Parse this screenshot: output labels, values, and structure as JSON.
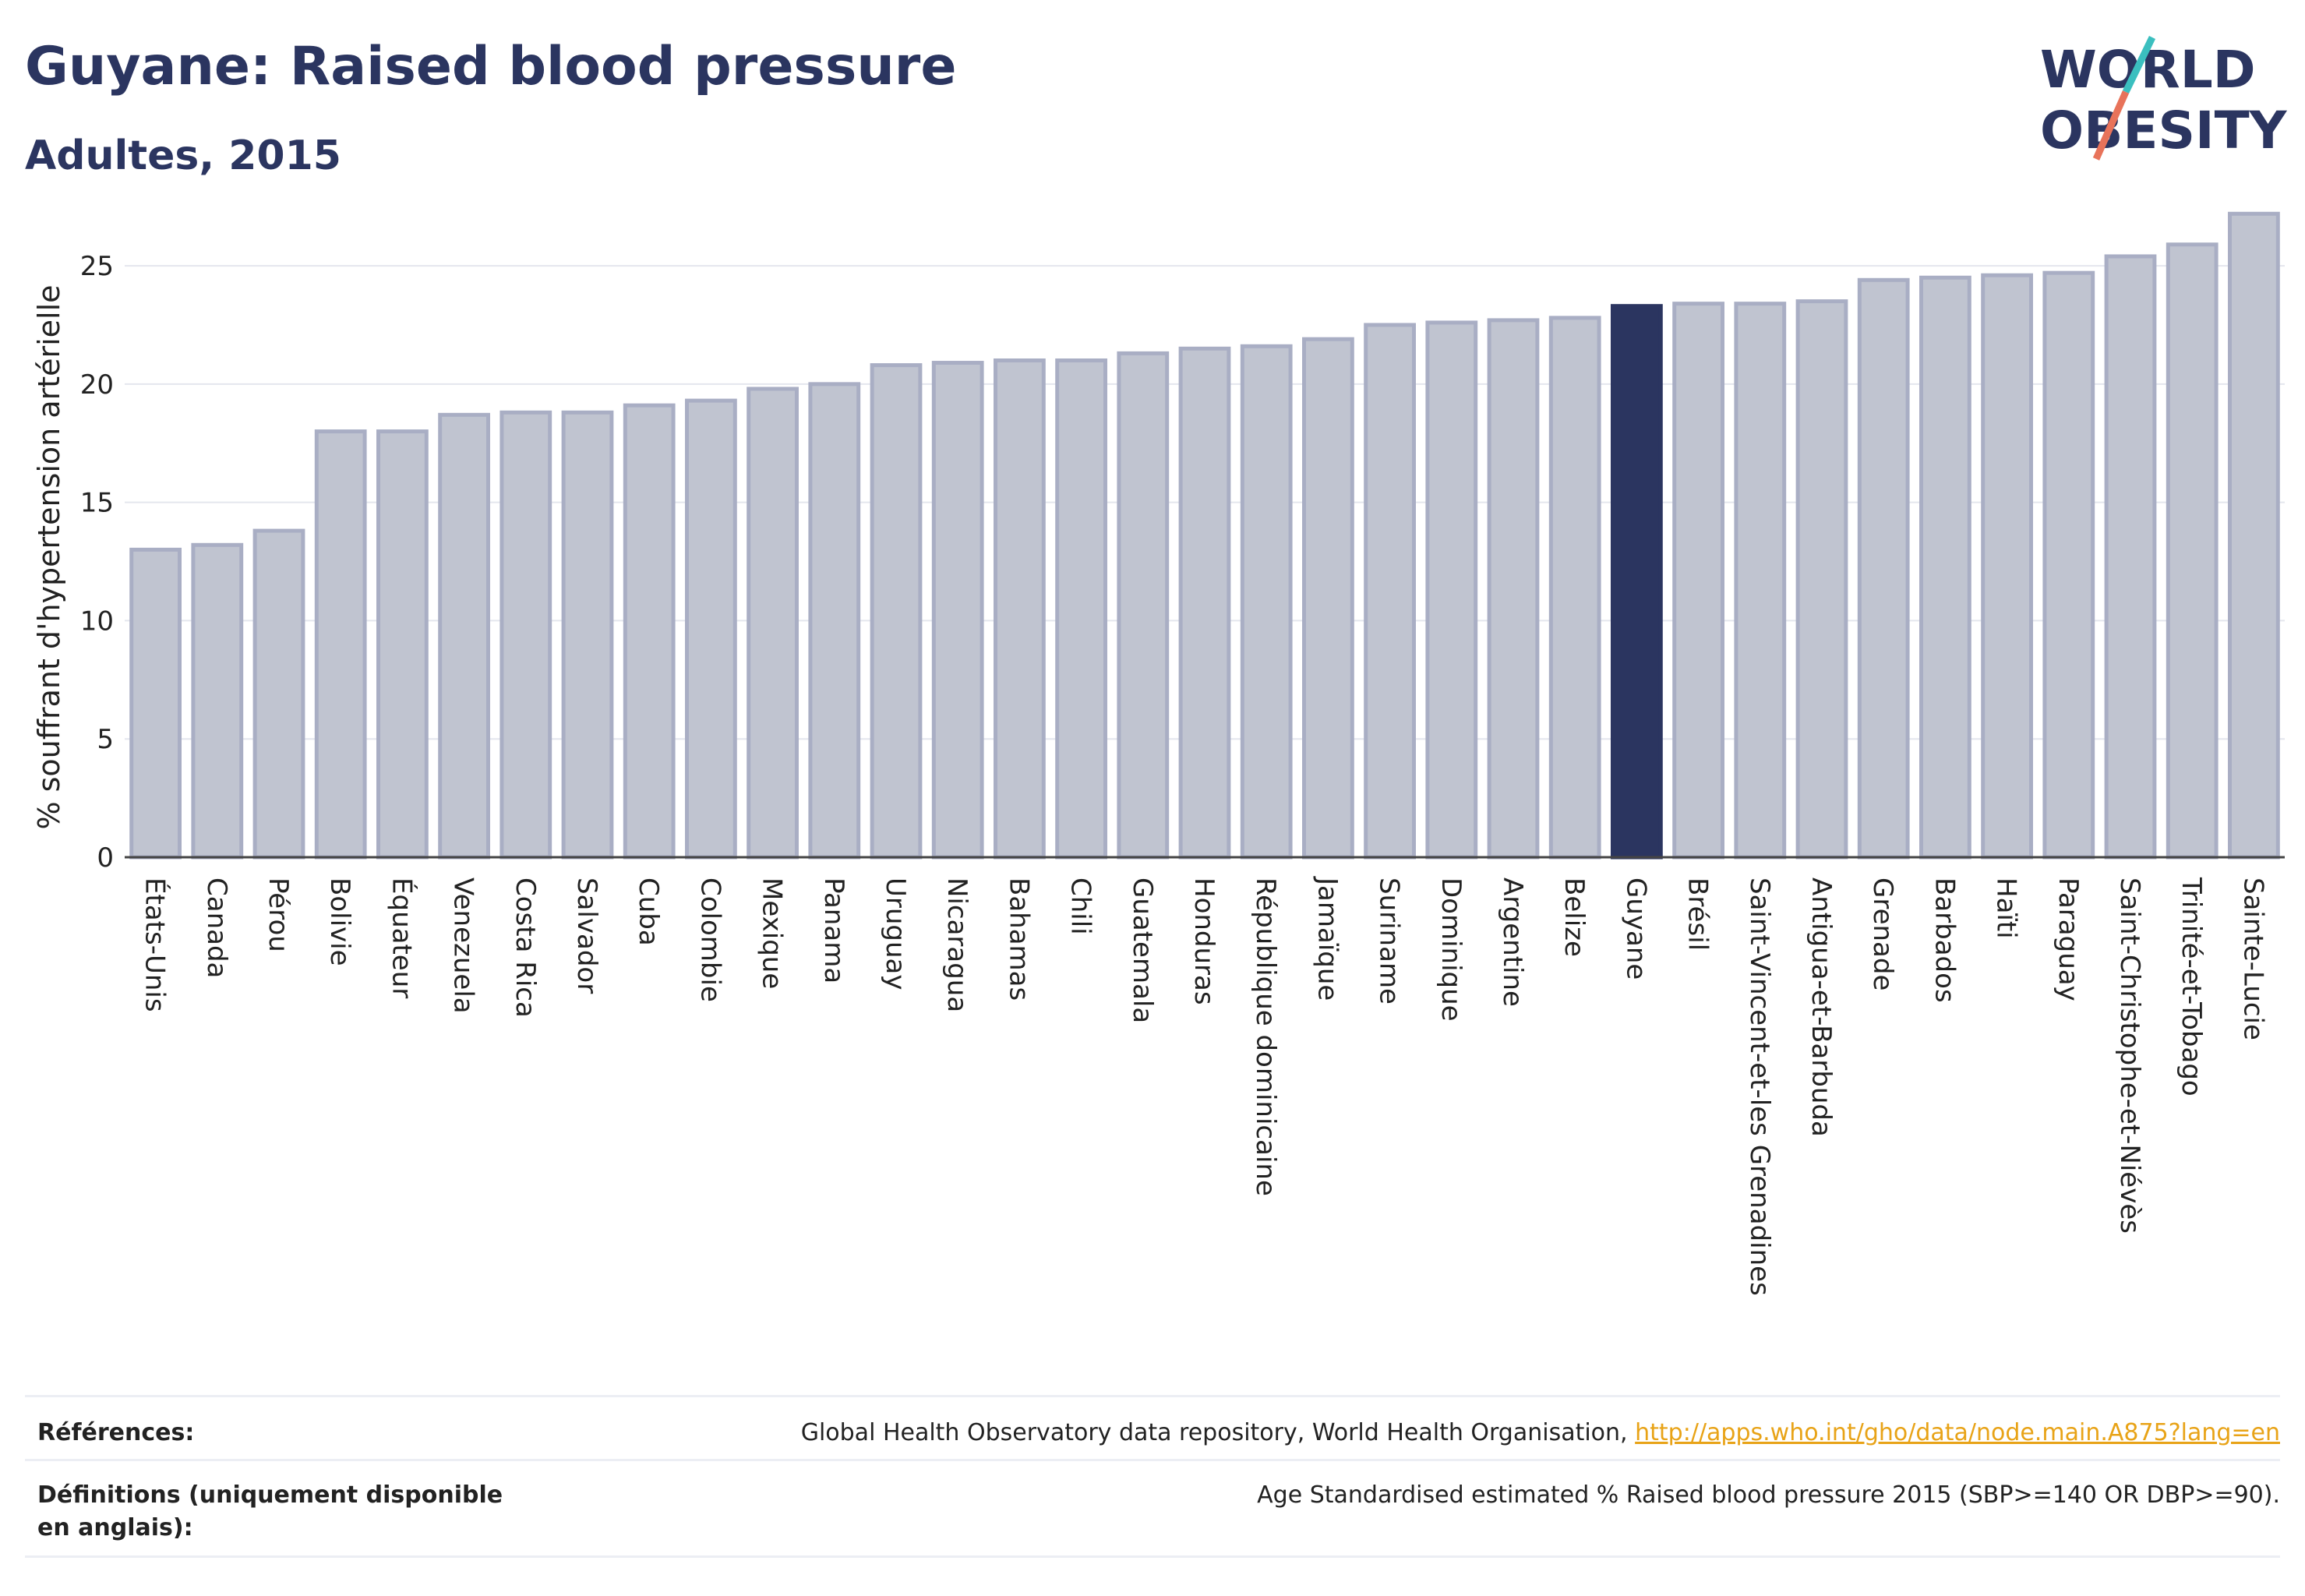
{
  "header": {
    "title": "Guyane: Raised blood pressure",
    "subtitle": "Adultes, 2015"
  },
  "logo": {
    "line1": "WORLD",
    "line2": "OBESITY",
    "text_color": "#2b3560",
    "slash_colors": [
      "#3bbfbf",
      "#e8735a"
    ]
  },
  "chart_data": {
    "type": "bar",
    "ylabel": "% souffrant d'hypertension artérielle",
    "xlabel": "",
    "ylim": [
      0,
      28
    ],
    "yticks": [
      0,
      5,
      10,
      15,
      20,
      25
    ],
    "grid": true,
    "highlight": "Guyane",
    "colors": {
      "bar": "#c0c4d0",
      "bar_edge": "#a9aec4",
      "highlight": "#2b3560",
      "grid": "#e4e6ee",
      "axis": "#444444"
    },
    "categories": [
      "États-Unis",
      "Canada",
      "Pérou",
      "Bolivie",
      "Équateur",
      "Venezuela",
      "Costa Rica",
      "Salvador",
      "Cuba",
      "Colombie",
      "Mexique",
      "Panama",
      "Uruguay",
      "Nicaragua",
      "Bahamas",
      "Chili",
      "Guatemala",
      "Honduras",
      "République dominicaine",
      "Jamaïque",
      "Suriname",
      "Dominique",
      "Argentine",
      "Belize",
      "Guyane",
      "Brésil",
      "Saint-Vincent-et-les Grenadines",
      "Antigua-et-Barbuda",
      "Grenade",
      "Barbados",
      "Haïti",
      "Paraguay",
      "Saint-Christophe-et-Niévès",
      "Trinité-et-Tobago",
      "Sainte-Lucie"
    ],
    "values": [
      13.0,
      13.2,
      13.8,
      18.0,
      18.0,
      18.7,
      18.8,
      18.8,
      19.1,
      19.3,
      19.8,
      20.0,
      20.8,
      20.9,
      21.0,
      21.0,
      21.3,
      21.5,
      21.6,
      21.9,
      22.5,
      22.6,
      22.7,
      22.8,
      23.3,
      23.4,
      23.4,
      23.5,
      24.4,
      24.5,
      24.6,
      24.7,
      25.4,
      25.9,
      27.2
    ]
  },
  "footer": {
    "references_label": "Références:",
    "references_text": "Global Health Observatory data repository, World Health Organisation,",
    "references_link": "http://apps.who.int/gho/data/node.main.A875?lang=en",
    "definitions_label": "Définitions (uniquement disponible en anglais):",
    "definitions_text": "Age Standardised estimated % Raised blood pressure 2015 (SBP>=140 OR DBP>=90)."
  }
}
